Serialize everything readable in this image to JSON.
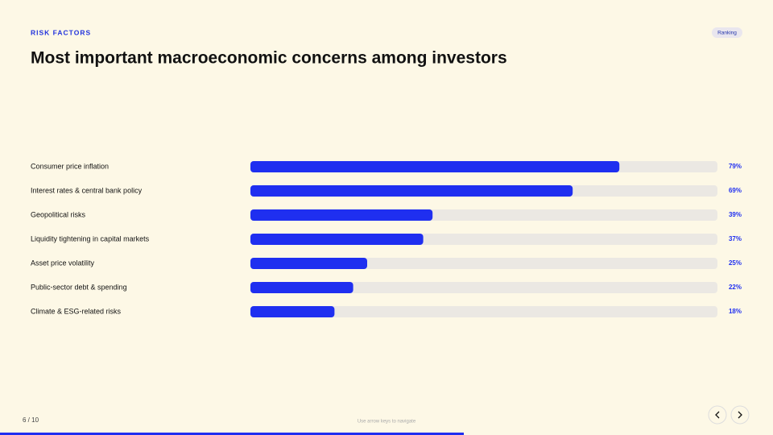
{
  "header": {
    "kicker": "RISK FACTORS",
    "badge": "Ranking"
  },
  "chart_data": {
    "type": "bar",
    "title": "Most important macroeconomic concerns among investors",
    "categories": [
      "Consumer price inflation",
      "Interest rates & central bank policy",
      "Geopolitical risks",
      "Liquidity tightening in capital markets",
      "Asset price volatility",
      "Public-sector debt & spending",
      "Climate & ESG-related risks"
    ],
    "values": [
      79,
      69,
      39,
      37,
      25,
      22,
      18
    ],
    "value_labels": [
      "79%",
      "69%",
      "39%",
      "37%",
      "25%",
      "22%",
      "18%"
    ],
    "color": "#1f2ff0",
    "xlim": [
      0,
      100
    ]
  },
  "footer": {
    "page": "6 / 10",
    "hint": "Use arrow keys to navigate"
  }
}
